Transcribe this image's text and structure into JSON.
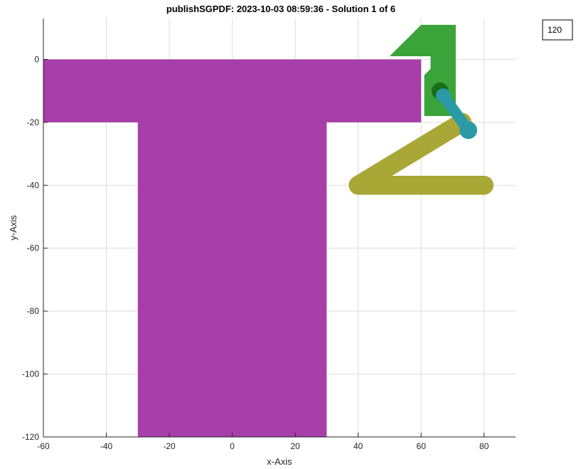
{
  "chart_data": {
    "type": "scatter",
    "title": "publishSGPDF: 2023-10-03 08:59:36 - Solution 1 of 6",
    "xlabel": "x-Axis",
    "ylabel": "y-Axis",
    "xlim": [
      -60,
      90
    ],
    "ylim": [
      -120,
      13
    ],
    "xticks": [
      -60,
      -40,
      -20,
      0,
      20,
      40,
      60,
      80
    ],
    "xtick_labels": [
      "-60",
      "-40",
      "-20",
      "0",
      "20",
      "40",
      "60",
      "80"
    ],
    "yticks": [
      0,
      -20,
      -40,
      -60,
      -80,
      -100,
      -120
    ],
    "ytick_labels": [
      "0",
      "-20",
      "-40",
      "-60",
      "-80",
      "-100",
      "-120"
    ],
    "grid": true,
    "annotation": "120",
    "colors": {
      "magenta": "#a73ea9",
      "green": "#3aa33a",
      "olive": "#a9a735",
      "teal": "#2a9aa6",
      "dark_green": "#1a6e1a"
    },
    "shapes": [
      {
        "kind": "polygon",
        "color": "magenta",
        "points": [
          [
            -60,
            0
          ],
          [
            60,
            0
          ],
          [
            60,
            -20
          ],
          [
            30,
            -20
          ],
          [
            30,
            -120
          ],
          [
            -30,
            -120
          ],
          [
            -30,
            -20
          ],
          [
            -60,
            -20
          ]
        ]
      },
      {
        "kind": "polygon",
        "color": "green",
        "points": [
          [
            50,
            1
          ],
          [
            60,
            11
          ],
          [
            71,
            11
          ],
          [
            71,
            -18
          ],
          [
            61,
            -18
          ],
          [
            61,
            -5
          ],
          [
            63,
            -3
          ],
          [
            63,
            1
          ]
        ]
      },
      {
        "kind": "polyline",
        "color": "olive",
        "width": 6,
        "points": [
          [
            80,
            -40
          ],
          [
            40,
            -40
          ],
          [
            73,
            -20
          ]
        ]
      },
      {
        "kind": "polyline",
        "color": "teal",
        "width": 3.5,
        "points": [
          [
            67,
            -11.5
          ],
          [
            75,
            -22.5
          ]
        ]
      },
      {
        "kind": "dot",
        "color": "dark_green",
        "radius": 2.7,
        "point": [
          66,
          -10
        ]
      },
      {
        "kind": "dot",
        "color": "teal",
        "radius": 2.3,
        "point": [
          67,
          -11.5
        ]
      },
      {
        "kind": "dot",
        "color": "teal",
        "radius": 2.8,
        "point": [
          75,
          -22.5
        ]
      }
    ]
  }
}
